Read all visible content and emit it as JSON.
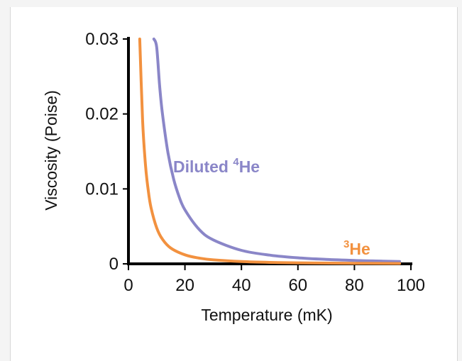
{
  "chart_data": {
    "type": "line",
    "title": "",
    "xlabel": "Temperature (mK)",
    "ylabel": "Viscosity (Poise)",
    "xlim": [
      0,
      100
    ],
    "ylim": [
      0,
      0.03
    ],
    "xticks": [
      "0",
      "20",
      "40",
      "60",
      "80",
      "100"
    ],
    "yticks": [
      "0",
      "0.01",
      "0.02",
      "0.03"
    ],
    "grid": false,
    "series": [
      {
        "name": "Diluted 4He",
        "label_main": "Diluted ",
        "label_sup": "4",
        "label_tail": "He",
        "color": "#8a86c8",
        "x": [
          9,
          10,
          11,
          12,
          14,
          16,
          18,
          20,
          25,
          30,
          40,
          50,
          60,
          70,
          80,
          90,
          96
        ],
        "y": [
          0.03,
          0.0289,
          0.0239,
          0.0201,
          0.0148,
          0.0113,
          0.0089,
          0.0072,
          0.0046,
          0.0032,
          0.0018,
          0.00116,
          0.0008,
          0.00059,
          0.00045,
          0.00036,
          0.00031
        ]
      },
      {
        "name": "3He",
        "label_main": "",
        "label_sup": "3",
        "label_tail": "He",
        "color": "#f2913f",
        "x": [
          4,
          5,
          6,
          7,
          8,
          10,
          12,
          15,
          20,
          25,
          30,
          40,
          50,
          60,
          80,
          96
        ],
        "y": [
          0.03,
          0.0192,
          0.0133,
          0.0098,
          0.0075,
          0.0048,
          0.0033,
          0.0021,
          0.0012,
          0.00077,
          0.00053,
          0.0003,
          0.00019,
          0.00013,
          7.5e-05,
          5e-05
        ]
      }
    ]
  }
}
